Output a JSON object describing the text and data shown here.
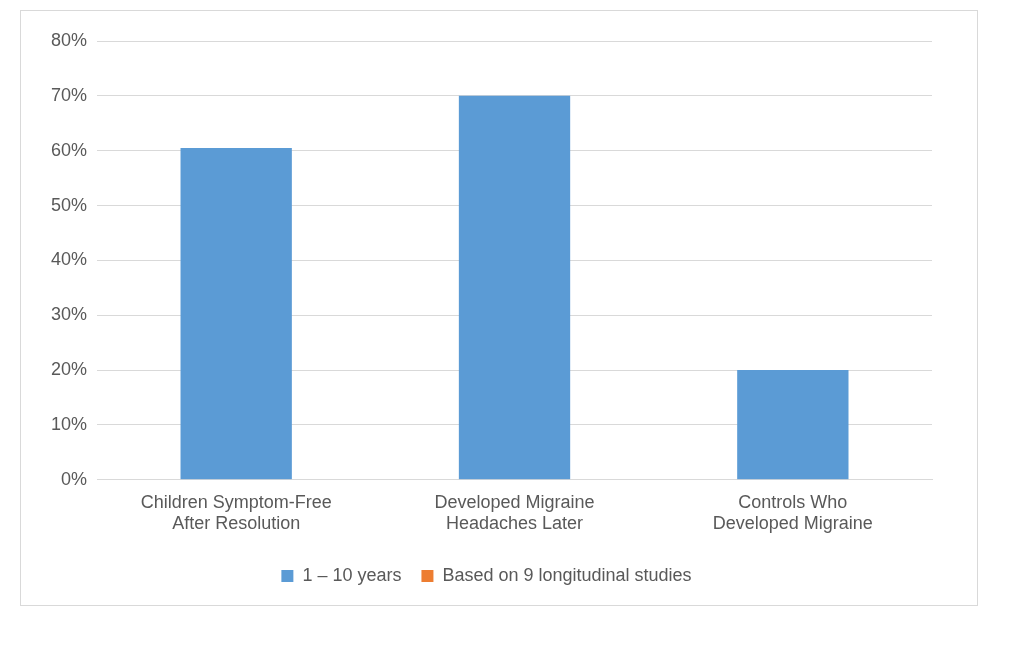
{
  "chart_data": {
    "type": "bar",
    "categories": [
      "Children Symptom-Free After Resolution",
      "Developed Migraine Headaches Later",
      "Controls Who Developed Migraine"
    ],
    "series": [
      {
        "name": "1 – 10 years",
        "color": "#5b9bd5",
        "values": [
          60.5,
          70,
          20
        ]
      },
      {
        "name": "Based on 9 longitudinal studies",
        "color": "#ed7d31",
        "values": [
          null,
          null,
          null
        ]
      }
    ],
    "ylim": [
      0,
      80
    ],
    "yticks": [
      {
        "value": 0,
        "label": "0%"
      },
      {
        "value": 10,
        "label": "10%"
      },
      {
        "value": 20,
        "label": "20%"
      },
      {
        "value": 30,
        "label": "30%"
      },
      {
        "value": 40,
        "label": "40%"
      },
      {
        "value": 50,
        "label": "50%"
      },
      {
        "value": 60,
        "label": "60%"
      },
      {
        "value": 70,
        "label": "70%"
      },
      {
        "value": 80,
        "label": "80%"
      }
    ],
    "grid": "y",
    "legend": "bottom"
  }
}
